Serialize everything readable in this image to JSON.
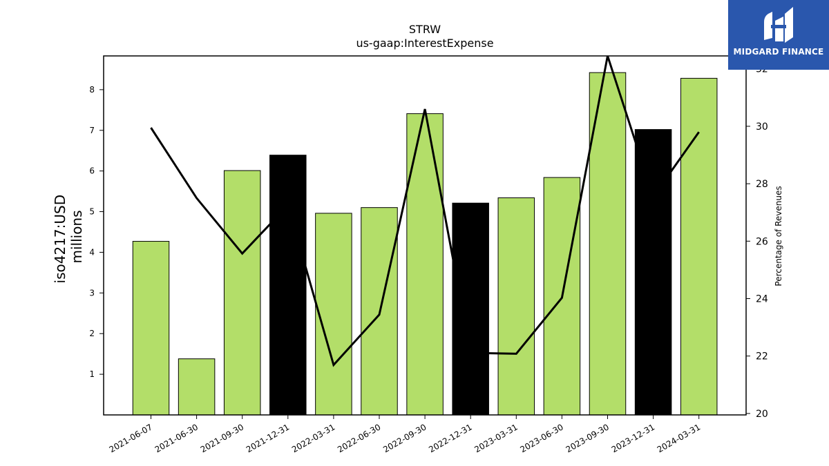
{
  "chart_data": {
    "type": "bar",
    "title": "STRW",
    "subtitle": "us-gaap:InterestExpense",
    "ylabel": "iso4217:USD\nmillions",
    "y2label": "Percentage of Revenues",
    "categories": [
      "2021-06-07",
      "2021-06-30",
      "2021-09-30",
      "2021-12-31",
      "2022-03-31",
      "2022-06-30",
      "2022-09-30",
      "2022-12-31",
      "2023-03-31",
      "2023-06-30",
      "2023-09-30",
      "2023-12-31",
      "2024-03-31"
    ],
    "series": [
      {
        "type": "bar",
        "values": [
          4.27,
          1.38,
          6.01,
          6.39,
          4.96,
          5.1,
          7.41,
          5.21,
          5.34,
          5.84,
          8.42,
          7.02,
          8.28
        ],
        "colors": [
          "#b3de69",
          "#b3de69",
          "#b3de69",
          "#000000",
          "#b3de69",
          "#b3de69",
          "#b3de69",
          "#000000",
          "#b3de69",
          "#b3de69",
          "#b3de69",
          "#000000",
          "#b3de69"
        ]
      },
      {
        "type": "line",
        "axis": "right",
        "values": [
          29.95,
          27.5,
          25.57,
          27.25,
          21.69,
          23.44,
          30.6,
          22.11,
          22.08,
          24.03,
          32.45,
          27.55,
          29.8
        ],
        "color": "#000000"
      }
    ],
    "ylim": [
      0,
      8.83
    ],
    "y2lim": [
      19.95,
      32.45
    ],
    "yticks": [
      1,
      2,
      3,
      4,
      5,
      6,
      7,
      8
    ],
    "y2ticks": [
      20,
      22,
      24,
      26,
      28,
      30,
      32
    ],
    "grid": false,
    "legend": "none"
  },
  "logo": {
    "text": "MIDGARD FINANCE"
  }
}
